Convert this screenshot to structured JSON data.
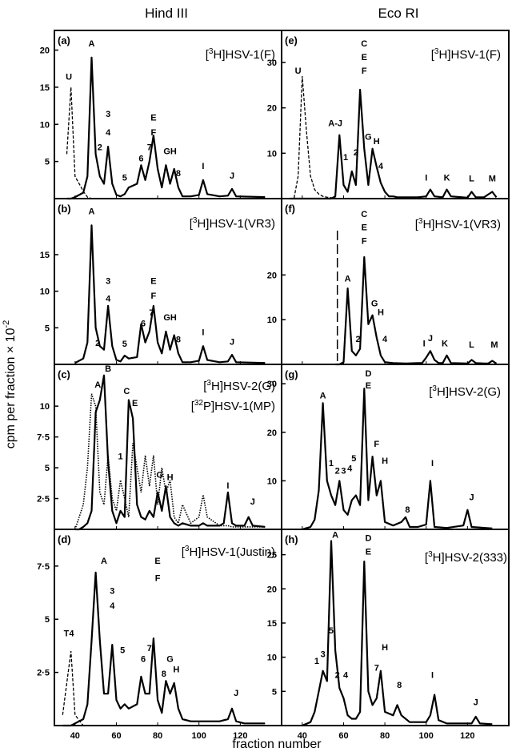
{
  "figure": {
    "column_titles": [
      "Hind III",
      "Eco RI"
    ],
    "ylabel": "cpm per fraction × 10",
    "ylabel_exponent": "-2",
    "xlabel": "fraction number",
    "x_ticks": [
      40,
      60,
      80,
      100,
      120
    ]
  },
  "chart_data": [
    {
      "panel": "(a)",
      "type": "line",
      "title": "[3H]HSV-1(F)",
      "ylim": [
        0,
        22
      ],
      "yticks": [
        "20",
        "15",
        "10",
        "5"
      ],
      "x": [
        36,
        38,
        40,
        44,
        46,
        48,
        50,
        52,
        54,
        56,
        58,
        60,
        62,
        64,
        66,
        70,
        72,
        74,
        76,
        78,
        80,
        82,
        84,
        86,
        88,
        90,
        92,
        96,
        100,
        102,
        104,
        110,
        114,
        116,
        118,
        132
      ],
      "series": [
        {
          "style": "solid",
          "y": [
            0,
            0,
            0.2,
            0.8,
            3,
            19,
            6,
            3,
            2,
            7,
            2,
            0.5,
            0.3,
            0.6,
            1.5,
            2,
            4.5,
            2.5,
            5,
            8.5,
            4,
            1.5,
            4.5,
            2,
            4,
            1.5,
            0.3,
            0.3,
            0.5,
            2.5,
            0.6,
            0.3,
            0.4,
            1.3,
            0.3,
            0.2
          ]
        },
        {
          "style": "dashed",
          "y": [
            6,
            15,
            3,
            1,
            0.2,
            0,
            0,
            0,
            0,
            0,
            0,
            0,
            0,
            0,
            0,
            0,
            0,
            0,
            0,
            0,
            0,
            0,
            0,
            0,
            0,
            0,
            0,
            0,
            0,
            0,
            0,
            0,
            0,
            0,
            0,
            0
          ]
        }
      ],
      "peak_labels": [
        "U",
        "A",
        "2",
        "3",
        "4",
        "5",
        "6",
        "7",
        "E",
        "F",
        "GH",
        "8",
        "I",
        "J"
      ]
    },
    {
      "panel": "(b)",
      "type": "line",
      "title": "[3H]HSV-1(VR3)",
      "ylim": [
        0,
        22
      ],
      "yticks": [
        "15",
        "10",
        "5"
      ],
      "x": [
        40,
        44,
        46,
        48,
        50,
        52,
        54,
        56,
        58,
        60,
        62,
        64,
        66,
        70,
        72,
        74,
        76,
        78,
        80,
        82,
        84,
        86,
        88,
        90,
        92,
        96,
        100,
        102,
        104,
        110,
        114,
        116,
        118,
        132
      ],
      "series": [
        {
          "style": "solid",
          "y": [
            0.2,
            0.8,
            3,
            19,
            5,
            2.5,
            2,
            8,
            2.5,
            0.6,
            0.4,
            1.2,
            0.8,
            1,
            5.5,
            3,
            4.5,
            8,
            3,
            1.5,
            4.5,
            2,
            4,
            1.5,
            0.3,
            0.3,
            0.5,
            2.5,
            0.6,
            0.3,
            0.4,
            1.3,
            0.3,
            0.2
          ]
        }
      ],
      "peak_labels": [
        "A",
        "2",
        "3",
        "4",
        "5",
        "6",
        "7",
        "E",
        "F",
        "GH",
        "8",
        "I",
        "J"
      ]
    },
    {
      "panel": "(c)",
      "type": "line",
      "title": "[3H]HSV-2(G)",
      "title2": "[32P]HSV-1(MP)",
      "ylim": [
        0,
        13
      ],
      "yticks": [
        "10",
        "7·5",
        "5",
        "2·5"
      ],
      "x": [
        40,
        42,
        44,
        46,
        48,
        50,
        52,
        54,
        56,
        58,
        60,
        62,
        64,
        66,
        68,
        70,
        72,
        74,
        76,
        78,
        80,
        82,
        84,
        86,
        88,
        90,
        92,
        96,
        100,
        102,
        104,
        110,
        112,
        114,
        116,
        118,
        122,
        124,
        126,
        132
      ],
      "series": [
        {
          "style": "solid",
          "y": [
            0,
            0,
            0.2,
            0.5,
            1.5,
            9.5,
            10.5,
            12.5,
            5.5,
            1.5,
            0.5,
            1.5,
            1,
            10.5,
            9,
            2,
            1,
            0.8,
            1.5,
            1,
            3,
            1.5,
            3.5,
            1,
            0.5,
            0.3,
            0.5,
            0.3,
            0.3,
            0.5,
            0.3,
            0.3,
            0.5,
            3,
            0.5,
            0.3,
            0.3,
            1,
            0.3,
            0.2
          ]
        },
        {
          "style": "dotted",
          "y": [
            0,
            1,
            2,
            5,
            11,
            10,
            3,
            2,
            6,
            2.5,
            1.5,
            4,
            2.5,
            1,
            7,
            5,
            3,
            6,
            3.5,
            6,
            2,
            5,
            3,
            4,
            1,
            0.5,
            2,
            0.5,
            1,
            2.8,
            1,
            0.3,
            0.3,
            0.3,
            0.2,
            0.2,
            0.2,
            0.2,
            0.2,
            0.2
          ]
        }
      ],
      "peak_labels": [
        "A",
        "B",
        "C",
        "E",
        "1",
        "G",
        "H",
        "I",
        "J"
      ]
    },
    {
      "panel": "(d)",
      "type": "line",
      "title": "[3H]HSV-1(Justin)",
      "ylim": [
        0,
        9
      ],
      "yticks": [
        "7·5",
        "5",
        "2·5"
      ],
      "x": [
        34,
        36,
        38,
        40,
        44,
        46,
        48,
        50,
        52,
        54,
        56,
        58,
        60,
        62,
        64,
        66,
        70,
        72,
        74,
        76,
        78,
        80,
        82,
        84,
        86,
        88,
        90,
        92,
        96,
        100,
        104,
        110,
        114,
        116,
        118,
        122,
        132
      ],
      "series": [
        {
          "style": "solid",
          "y": [
            0,
            0,
            0,
            0.1,
            0.3,
            1,
            4,
            7.2,
            4,
            1.5,
            1.5,
            3.8,
            1.2,
            0.8,
            1,
            0.8,
            1,
            2.3,
            1.5,
            1.5,
            4.1,
            1.2,
            0.6,
            2.1,
            1.5,
            2,
            0.8,
            0.3,
            0.2,
            0.2,
            0.2,
            0.2,
            0.3,
            0.8,
            0.2,
            0.1,
            0.1
          ]
        },
        {
          "style": "dashed",
          "y": [
            0.5,
            2,
            3.5,
            0.5,
            0,
            0,
            0,
            0,
            0,
            0,
            0,
            0,
            0,
            0,
            0,
            0,
            0,
            0,
            0,
            0,
            0,
            0,
            0,
            0,
            0,
            0,
            0,
            0,
            0,
            0,
            0,
            0,
            0,
            0,
            0,
            0,
            0
          ]
        }
      ],
      "peak_labels": [
        "T4",
        "A",
        "3",
        "4",
        "5",
        "6",
        "7",
        "E",
        "F",
        "8",
        "G",
        "H",
        "J"
      ]
    },
    {
      "panel": "(e)",
      "type": "line",
      "title": "[3H]HSV-1(F)",
      "ylim": [
        0,
        36
      ],
      "yticks": [
        "30",
        "20",
        "10"
      ],
      "x": [
        34,
        36,
        38,
        40,
        42,
        44,
        46,
        48,
        50,
        52,
        54,
        56,
        58,
        60,
        62,
        64,
        66,
        68,
        70,
        72,
        74,
        76,
        78,
        80,
        82,
        84,
        86,
        88,
        92,
        96,
        100,
        102,
        104,
        108,
        110,
        112,
        120,
        122,
        124,
        128,
        132,
        134
      ],
      "series": [
        {
          "style": "solid",
          "y": [
            0,
            0,
            0,
            0,
            0,
            0,
            0,
            0,
            0,
            0,
            0,
            0.5,
            14,
            3,
            1.5,
            6,
            3,
            24,
            11,
            3,
            11,
            7,
            3.5,
            1.5,
            0.5,
            0.5,
            0.3,
            0.3,
            0.3,
            0.3,
            0.5,
            2,
            0.5,
            0.3,
            2,
            0.5,
            0.2,
            1.5,
            0.3,
            0.3,
            1.5,
            0.3
          ]
        },
        {
          "style": "dashed",
          "y": [
            0,
            0,
            5,
            27,
            15,
            5,
            2,
            1,
            0.5,
            0.3,
            0.2,
            0.1,
            0,
            0,
            0,
            0,
            0,
            0,
            0,
            0,
            0,
            0,
            0,
            0,
            0,
            0,
            0,
            0,
            0,
            0,
            0,
            0,
            0,
            0,
            0,
            0,
            0,
            0,
            0,
            0,
            0,
            0
          ]
        }
      ],
      "peak_labels": [
        "U",
        "A-J",
        "1",
        "2",
        "C",
        "E",
        "F",
        "G",
        "H",
        "4",
        "I",
        "K",
        "L",
        "M"
      ]
    },
    {
      "panel": "(f)",
      "type": "line",
      "title": "[3H]HSV-1(VR3)",
      "ylim": [
        0,
        36
      ],
      "yticks": [
        "20",
        "10"
      ],
      "x": [
        56,
        58,
        60,
        62,
        64,
        66,
        68,
        70,
        72,
        74,
        76,
        78,
        80,
        84,
        90,
        96,
        98,
        100,
        102,
        104,
        106,
        108,
        110,
        112,
        120,
        122,
        124,
        128,
        130,
        132,
        134
      ],
      "series": [
        {
          "style": "solid",
          "y": [
            0,
            0,
            0.5,
            17,
            3,
            2,
            3.5,
            24,
            9,
            11,
            6,
            2,
            0.5,
            0.3,
            0.2,
            0.3,
            0.3,
            1.5,
            3,
            1,
            0.3,
            0.3,
            2,
            0.3,
            0.2,
            1,
            0.3,
            0.2,
            0.2,
            0.8,
            0.2
          ]
        }
      ],
      "peak_labels": [
        "A",
        "2",
        "C",
        "E",
        "F",
        "G",
        "H",
        "4",
        "I",
        "J",
        "K",
        "L",
        "M"
      ]
    },
    {
      "panel": "(g)",
      "type": "line",
      "title": "[3H]HSV-2(G)",
      "ylim": [
        0,
        33
      ],
      "yticks": [
        "30",
        "20",
        "10"
      ],
      "x": [
        40,
        44,
        46,
        48,
        50,
        52,
        54,
        56,
        58,
        60,
        62,
        64,
        66,
        68,
        70,
        72,
        74,
        76,
        78,
        80,
        84,
        88,
        90,
        92,
        96,
        100,
        102,
        104,
        110,
        118,
        120,
        122,
        132
      ],
      "series": [
        {
          "style": "solid",
          "y": [
            0,
            0.5,
            2,
            8,
            26,
            10,
            7,
            5,
            10,
            4,
            3,
            6,
            7,
            5,
            29,
            6,
            15,
            7,
            10,
            1.5,
            0.8,
            1.5,
            2.5,
            0.5,
            0.5,
            1,
            10,
            0.5,
            0.3,
            0.8,
            4,
            0.5,
            0.2
          ]
        }
      ],
      "peak_labels": [
        "A",
        "1",
        "2",
        "3",
        "4",
        "5",
        "D",
        "E",
        "F",
        "H",
        "8",
        "I",
        "J"
      ]
    },
    {
      "panel": "(h)",
      "type": "line",
      "title": "[3H]HSV-2(333)",
      "ylim": [
        0,
        28
      ],
      "yticks": [
        "25",
        "20",
        "15",
        "10",
        "5"
      ],
      "x": [
        40,
        44,
        46,
        48,
        50,
        52,
        54,
        56,
        58,
        60,
        62,
        64,
        66,
        68,
        70,
        72,
        74,
        76,
        78,
        80,
        84,
        86,
        88,
        92,
        96,
        100,
        102,
        104,
        106,
        110,
        118,
        122,
        124,
        126,
        132
      ],
      "series": [
        {
          "style": "solid",
          "y": [
            0,
            0.5,
            2,
            5,
            8,
            6.5,
            27,
            11,
            5.5,
            4,
            1.5,
            1,
            1,
            2,
            24,
            5,
            3,
            4,
            8,
            2,
            1.5,
            3,
            1.5,
            0.5,
            0.5,
            0.5,
            1.5,
            4.5,
            0.8,
            0.3,
            0.3,
            0.3,
            1.3,
            0.3,
            0.2
          ]
        }
      ],
      "peak_labels": [
        "1",
        "3",
        "5",
        "A",
        "2",
        "4",
        "D",
        "E",
        "7",
        "H",
        "8",
        "I",
        "J"
      ]
    }
  ]
}
